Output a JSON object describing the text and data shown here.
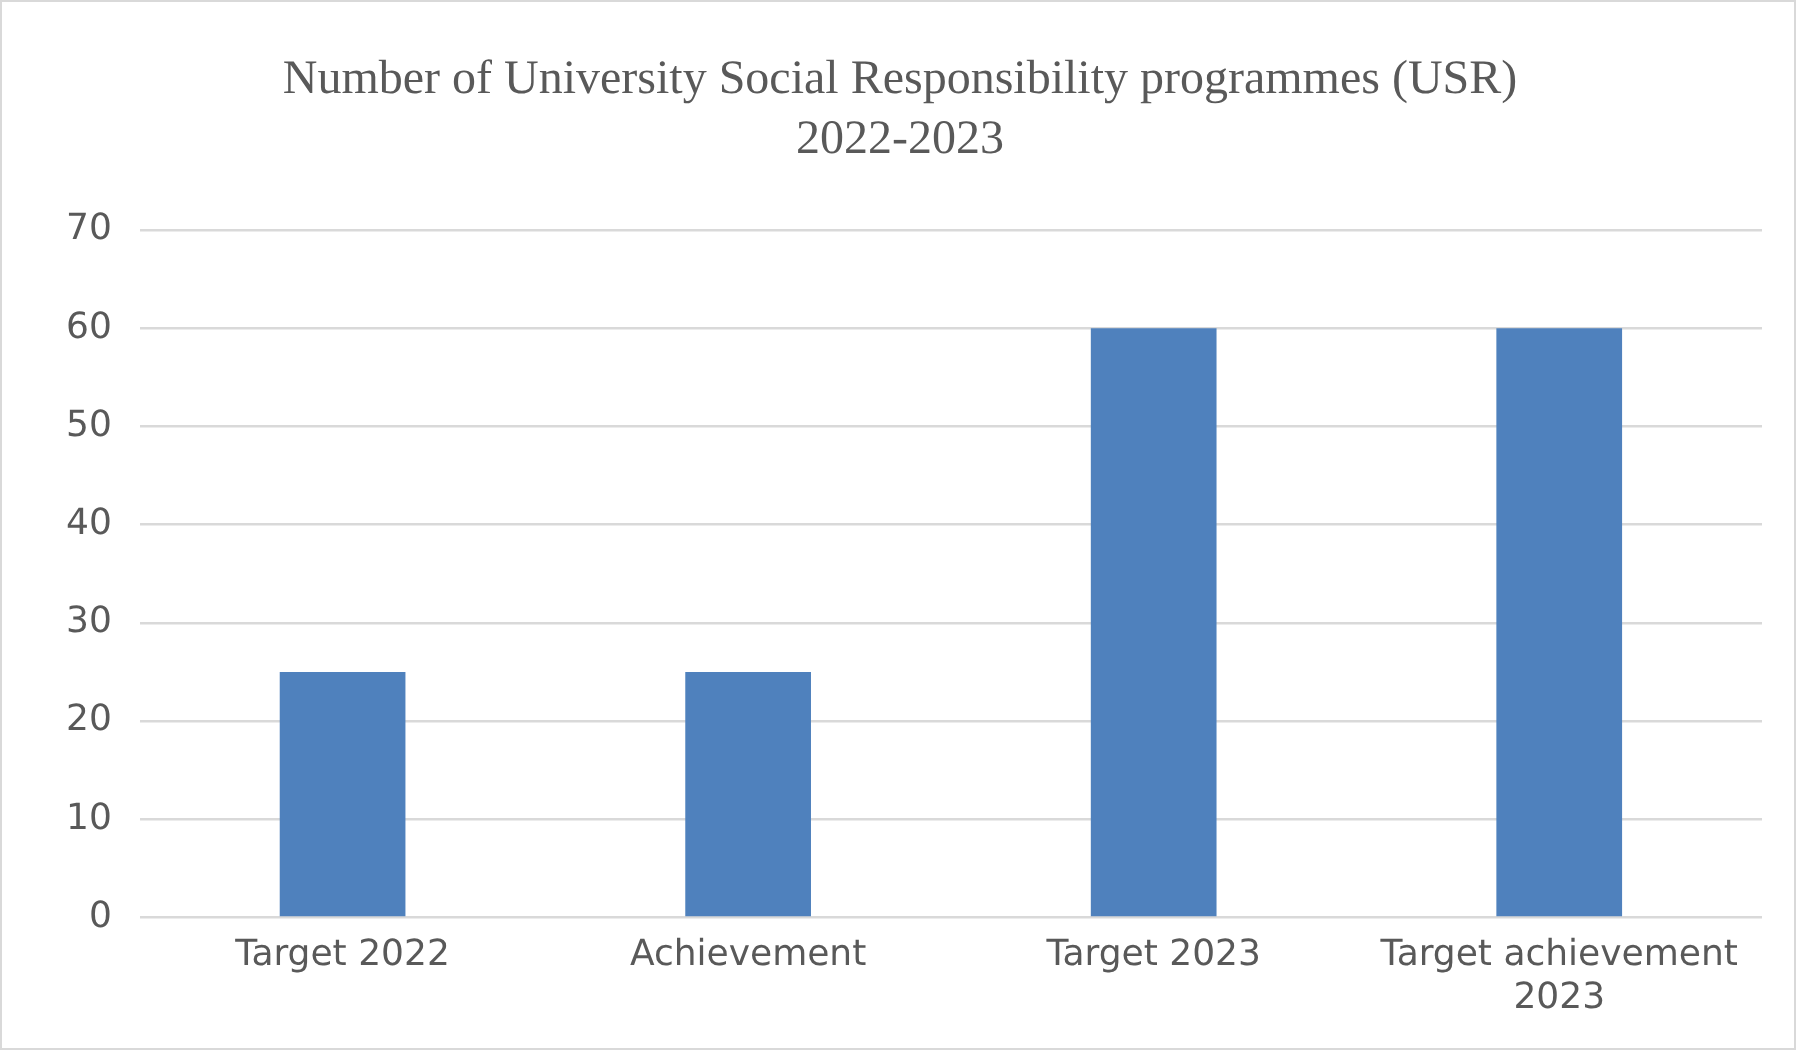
{
  "chart_data": {
    "type": "bar",
    "title": "Number of University Social Responsibility programmes (USR) 2022-2023",
    "categories": [
      "Target 2022",
      "Achievement",
      "Target 2023",
      "Target achievement 2023"
    ],
    "values": [
      25,
      25,
      60,
      60
    ],
    "color": "#4f81bd",
    "ylim": [
      0,
      70
    ],
    "yticks": [
      0,
      10,
      20,
      30,
      40,
      50,
      60,
      70
    ],
    "grid": "y",
    "legend": false
  }
}
